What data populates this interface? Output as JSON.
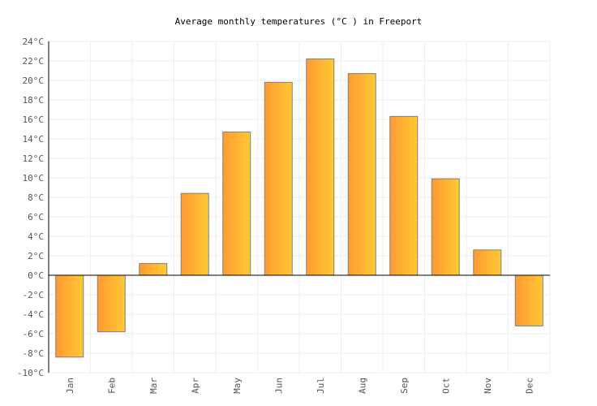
{
  "chart_data": {
    "type": "bar",
    "title": "Average monthly temperatures (°C ) in Freeport",
    "xlabel": "",
    "ylabel": "",
    "categories": [
      "Jan",
      "Feb",
      "Mar",
      "Apr",
      "May",
      "Jun",
      "Jul",
      "Aug",
      "Sep",
      "Oct",
      "Nov",
      "Dec"
    ],
    "values": [
      -8.4,
      -5.8,
      1.2,
      8.4,
      14.7,
      19.8,
      22.2,
      20.7,
      16.3,
      9.9,
      2.6,
      -5.2
    ],
    "ylim": [
      -10,
      24
    ],
    "ytick_step": 2,
    "ytick_unit": "°C",
    "grid": true,
    "legend": "none",
    "colors": {
      "bar_left": "#ff9a33",
      "bar_right": "#ffc933",
      "bar_stroke": "#808080",
      "grid": "#eeeeee",
      "axis": "#000000"
    }
  }
}
